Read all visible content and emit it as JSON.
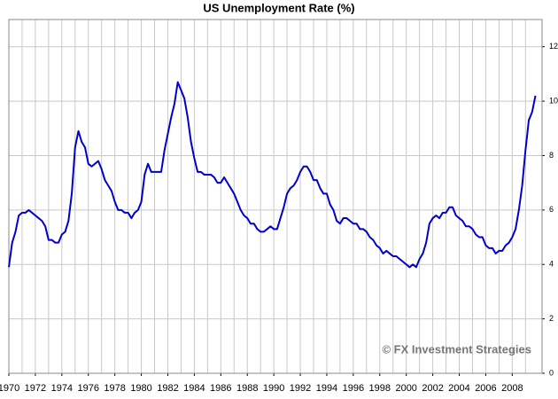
{
  "chart_data": {
    "type": "line",
    "title": "US Unemployment Rate (%)",
    "annotation": "© FX Investment Strategies",
    "x": [
      1970,
      1970.25,
      1970.5,
      1970.75,
      1971,
      1971.25,
      1971.5,
      1971.75,
      1972,
      1972.25,
      1972.5,
      1972.75,
      1973,
      1973.25,
      1973.5,
      1973.75,
      1974,
      1974.25,
      1974.5,
      1974.75,
      1975,
      1975.25,
      1975.5,
      1975.75,
      1976,
      1976.25,
      1976.5,
      1976.75,
      1977,
      1977.25,
      1977.5,
      1977.75,
      1978,
      1978.25,
      1978.5,
      1978.75,
      1979,
      1979.25,
      1979.5,
      1979.75,
      1980,
      1980.25,
      1980.5,
      1980.75,
      1981,
      1981.25,
      1981.5,
      1981.75,
      1982,
      1982.25,
      1982.5,
      1982.75,
      1983,
      1983.25,
      1983.5,
      1983.75,
      1984,
      1984.25,
      1984.5,
      1984.75,
      1985,
      1985.25,
      1985.5,
      1985.75,
      1986,
      1986.25,
      1986.5,
      1986.75,
      1987,
      1987.25,
      1987.5,
      1987.75,
      1988,
      1988.25,
      1988.5,
      1988.75,
      1989,
      1989.25,
      1989.5,
      1989.75,
      1990,
      1990.25,
      1990.5,
      1990.75,
      1991,
      1991.25,
      1991.5,
      1991.75,
      1992,
      1992.25,
      1992.5,
      1992.75,
      1993,
      1993.25,
      1993.5,
      1993.75,
      1994,
      1994.25,
      1994.5,
      1994.75,
      1995,
      1995.25,
      1995.5,
      1995.75,
      1996,
      1996.25,
      1996.5,
      1996.75,
      1997,
      1997.25,
      1997.5,
      1997.75,
      1998,
      1998.25,
      1998.5,
      1998.75,
      1999,
      1999.25,
      1999.5,
      1999.75,
      2000,
      2000.25,
      2000.5,
      2000.75,
      2001,
      2001.25,
      2001.5,
      2001.75,
      2002,
      2002.25,
      2002.5,
      2002.75,
      2003,
      2003.25,
      2003.5,
      2003.75,
      2004,
      2004.25,
      2004.5,
      2004.75,
      2005,
      2005.25,
      2005.5,
      2005.75,
      2006,
      2006.25,
      2006.5,
      2006.75,
      2007,
      2007.25,
      2007.5,
      2007.75,
      2008,
      2008.25,
      2008.5,
      2008.75,
      2009,
      2009.25,
      2009.5,
      2009.75
    ],
    "series": [
      {
        "name": "US Unemployment Rate",
        "color": "#0000cc",
        "values": [
          3.9,
          4.8,
          5.2,
          5.8,
          5.9,
          5.9,
          6.0,
          5.9,
          5.8,
          5.7,
          5.6,
          5.4,
          4.9,
          4.9,
          4.8,
          4.8,
          5.1,
          5.2,
          5.6,
          6.6,
          8.3,
          8.9,
          8.5,
          8.3,
          7.7,
          7.6,
          7.7,
          7.8,
          7.5,
          7.1,
          6.9,
          6.7,
          6.3,
          6.0,
          6.0,
          5.9,
          5.9,
          5.7,
          5.9,
          6.0,
          6.3,
          7.3,
          7.7,
          7.4,
          7.4,
          7.4,
          7.4,
          8.2,
          8.8,
          9.4,
          9.9,
          10.7,
          10.4,
          10.1,
          9.4,
          8.5,
          7.9,
          7.4,
          7.4,
          7.3,
          7.3,
          7.3,
          7.2,
          7.0,
          7.0,
          7.2,
          7.0,
          6.8,
          6.6,
          6.3,
          6.0,
          5.8,
          5.7,
          5.5,
          5.5,
          5.3,
          5.2,
          5.2,
          5.3,
          5.4,
          5.3,
          5.3,
          5.7,
          6.1,
          6.6,
          6.8,
          6.9,
          7.1,
          7.4,
          7.6,
          7.6,
          7.4,
          7.1,
          7.1,
          6.8,
          6.6,
          6.6,
          6.2,
          6.0,
          5.6,
          5.5,
          5.7,
          5.7,
          5.6,
          5.5,
          5.5,
          5.3,
          5.3,
          5.2,
          5.0,
          4.9,
          4.7,
          4.6,
          4.4,
          4.5,
          4.4,
          4.3,
          4.3,
          4.2,
          4.1,
          4.0,
          3.9,
          4.0,
          3.9,
          4.2,
          4.4,
          4.8,
          5.5,
          5.7,
          5.8,
          5.7,
          5.9,
          5.9,
          6.1,
          6.1,
          5.8,
          5.7,
          5.6,
          5.4,
          5.4,
          5.3,
          5.1,
          5.0,
          5.0,
          4.7,
          4.6,
          4.6,
          4.4,
          4.5,
          4.5,
          4.7,
          4.8,
          5.0,
          5.3,
          6.0,
          6.9,
          8.2,
          9.3,
          9.6,
          10.2
        ]
      }
    ],
    "xlim": [
      1970,
      2010.25
    ],
    "xticks": [
      1970,
      1972,
      1974,
      1976,
      1978,
      1980,
      1982,
      1984,
      1986,
      1988,
      1990,
      1992,
      1994,
      1996,
      1998,
      2000,
      2002,
      2004,
      2006,
      2008
    ],
    "minor_xticks": [
      1971,
      1973,
      1975,
      1977,
      1979,
      1981,
      1983,
      1985,
      1987,
      1989,
      1991,
      1993,
      1995,
      1997,
      1999,
      2001,
      2003,
      2005,
      2007,
      2009
    ],
    "ylim": [
      0,
      13
    ],
    "yticks": [
      0,
      2,
      4,
      6,
      8,
      10,
      12
    ],
    "grid": true,
    "y_axis_side": "right"
  }
}
